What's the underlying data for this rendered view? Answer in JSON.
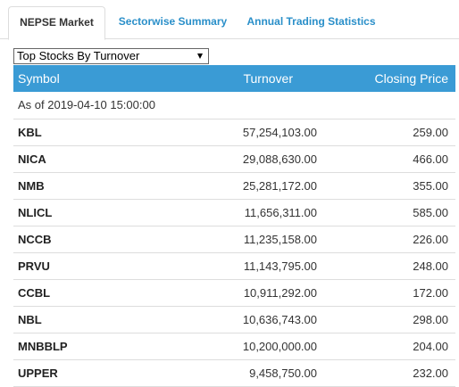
{
  "tabs": [
    "NEPSE Market",
    "Sectorwise Summary",
    "Annual Trading Statistics"
  ],
  "dropdown": {
    "selected": "Top Stocks By Turnover"
  },
  "table": {
    "headers": {
      "symbol": "Symbol",
      "turnover": "Turnover",
      "closing": "Closing Price"
    },
    "as_of": "As of 2019-04-10 15:00:00",
    "rows": [
      {
        "symbol": "KBL",
        "turnover": "57,254,103.00",
        "closing": "259.00"
      },
      {
        "symbol": "NICA",
        "turnover": "29,088,630.00",
        "closing": "466.00"
      },
      {
        "symbol": "NMB",
        "turnover": "25,281,172.00",
        "closing": "355.00"
      },
      {
        "symbol": "NLICL",
        "turnover": "11,656,311.00",
        "closing": "585.00"
      },
      {
        "symbol": "NCCB",
        "turnover": "11,235,158.00",
        "closing": "226.00"
      },
      {
        "symbol": "PRVU",
        "turnover": "11,143,795.00",
        "closing": "248.00"
      },
      {
        "symbol": "CCBL",
        "turnover": "10,911,292.00",
        "closing": "172.00"
      },
      {
        "symbol": "NBL",
        "turnover": "10,636,743.00",
        "closing": "298.00"
      },
      {
        "symbol": "MNBBLP",
        "turnover": "10,200,000.00",
        "closing": "204.00"
      },
      {
        "symbol": "UPPER",
        "turnover": "9,458,750.00",
        "closing": "232.00"
      }
    ]
  }
}
